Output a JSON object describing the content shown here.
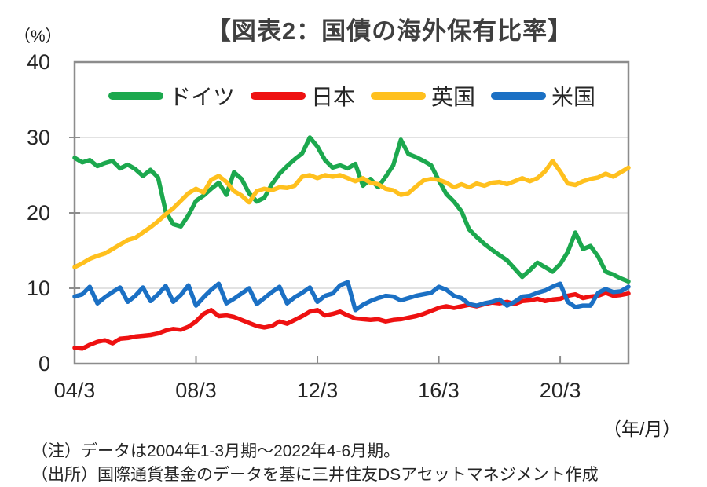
{
  "header": {
    "title": "【図表2：国債の海外保有比率】"
  },
  "chart_data": {
    "type": "line",
    "title": "【図表2：国債の海外保有比率】",
    "legend_position": "top-inside",
    "grid": "horizontal",
    "y_axis": {
      "unit": "（%）",
      "min": 0,
      "max": 40,
      "ticks": [
        0,
        10,
        20,
        30,
        40
      ],
      "gridlines": [
        10,
        20,
        30
      ]
    },
    "x_axis": {
      "unit": "（年/月）",
      "n_points": 74,
      "tick_quarters": [
        0,
        16,
        32,
        48,
        64
      ],
      "tick_labels": [
        "04/3",
        "08/3",
        "12/3",
        "16/3",
        "20/3"
      ]
    },
    "series": [
      {
        "key": "germany",
        "name": "ドイツ",
        "color": "#1ca84e",
        "values": [
          27.3,
          26.7,
          27.0,
          26.2,
          26.6,
          26.9,
          25.9,
          26.4,
          25.8,
          24.9,
          25.7,
          24.7,
          20.2,
          18.5,
          18.2,
          19.7,
          21.6,
          22.3,
          23.2,
          24.0,
          22.4,
          25.4,
          24.5,
          22.6,
          21.5,
          22.0,
          23.8,
          25.2,
          26.2,
          27.1,
          27.9,
          30.0,
          28.8,
          27.0,
          26.0,
          26.3,
          25.9,
          26.5,
          23.6,
          24.5,
          23.4,
          24.8,
          26.3,
          29.7,
          27.8,
          27.4,
          26.9,
          26.3,
          24.3,
          22.5,
          21.5,
          20.2,
          17.8,
          16.8,
          15.9,
          15.1,
          14.4,
          13.7,
          12.6,
          11.5,
          12.4,
          13.4,
          12.8,
          12.2,
          13.2,
          14.8,
          17.4,
          15.2,
          15.6,
          14.2,
          12.2,
          11.8,
          11.3,
          10.9
        ]
      },
      {
        "key": "japan",
        "name": "日本",
        "color": "#ee1111",
        "values": [
          2.1,
          2.0,
          2.5,
          2.9,
          3.1,
          2.7,
          3.3,
          3.4,
          3.6,
          3.7,
          3.8,
          4.0,
          4.4,
          4.6,
          4.5,
          4.9,
          5.6,
          6.6,
          7.1,
          6.3,
          6.4,
          6.2,
          5.8,
          5.4,
          5.0,
          4.8,
          5.0,
          5.6,
          5.3,
          5.8,
          6.3,
          6.9,
          7.1,
          6.4,
          6.6,
          6.9,
          6.4,
          6.0,
          5.9,
          5.8,
          5.9,
          5.6,
          5.8,
          5.9,
          6.1,
          6.3,
          6.6,
          7.0,
          7.4,
          7.6,
          7.4,
          7.6,
          7.8,
          7.6,
          7.9,
          8.1,
          8.0,
          8.2,
          7.9,
          8.3,
          8.4,
          8.6,
          8.3,
          8.5,
          8.6,
          9.0,
          9.2,
          8.7,
          8.9,
          9.0,
          9.4,
          9.0,
          9.1,
          9.3
        ]
      },
      {
        "key": "uk",
        "name": "英国",
        "color": "#ffc01e",
        "values": [
          12.8,
          13.3,
          13.9,
          14.3,
          14.6,
          15.2,
          15.8,
          16.4,
          16.7,
          17.4,
          18.1,
          18.9,
          19.8,
          20.6,
          21.6,
          22.6,
          23.2,
          22.7,
          24.4,
          24.9,
          24.1,
          22.9,
          22.3,
          21.4,
          22.9,
          23.2,
          23.0,
          23.4,
          23.3,
          23.6,
          24.8,
          25.0,
          24.6,
          25.0,
          24.8,
          25.0,
          24.6,
          24.2,
          24.6,
          24.0,
          23.8,
          23.2,
          23.0,
          22.4,
          22.6,
          23.5,
          24.3,
          24.5,
          24.4,
          24.0,
          23.4,
          23.8,
          23.4,
          23.9,
          23.6,
          24.0,
          24.1,
          23.8,
          24.2,
          24.6,
          24.2,
          24.6,
          25.5,
          26.9,
          25.5,
          23.9,
          23.7,
          24.2,
          24.5,
          24.7,
          25.2,
          24.8,
          25.4,
          26.0
        ]
      },
      {
        "key": "us",
        "name": "米国",
        "color": "#1b70c4",
        "values": [
          8.9,
          9.2,
          10.2,
          8.0,
          8.8,
          9.5,
          10.1,
          8.2,
          9.0,
          10.1,
          8.3,
          9.2,
          10.3,
          8.2,
          9.1,
          10.4,
          7.7,
          8.8,
          9.8,
          10.6,
          8.0,
          8.6,
          9.3,
          10.0,
          7.9,
          8.7,
          9.5,
          10.2,
          8.0,
          8.8,
          9.4,
          10.1,
          8.2,
          9.0,
          9.3,
          10.4,
          10.8,
          7.1,
          7.8,
          8.3,
          8.7,
          9.0,
          8.9,
          8.4,
          8.7,
          9.0,
          9.2,
          9.4,
          10.2,
          9.8,
          9.0,
          8.7,
          7.9,
          7.7,
          8.0,
          8.2,
          8.5,
          7.7,
          8.2,
          8.9,
          9.0,
          9.4,
          9.7,
          10.2,
          10.6,
          8.2,
          7.5,
          7.7,
          7.7,
          9.4,
          9.9,
          9.5,
          9.6,
          10.2
        ]
      }
    ],
    "palette": {
      "frame": "#8c8c8c",
      "gridline": "#d9d9d9",
      "title_text": "#3f3f3f",
      "axis_text": "#262626"
    }
  },
  "footer": {
    "note1": "（注）データは2004年1-3月期～2022年4-6月期。",
    "note2": "（出所）国際通貨基金のデータを基に三井住友DSアセットマネジメント作成"
  }
}
